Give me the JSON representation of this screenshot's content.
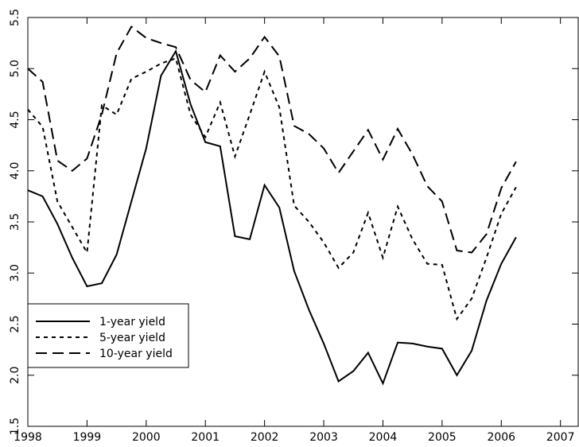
{
  "chart_data": {
    "type": "line",
    "x": [
      1998,
      1998.25,
      1998.5,
      1998.75,
      1999,
      1999.25,
      1999.5,
      1999.75,
      2000,
      2000.25,
      2000.5,
      2000.75,
      2001,
      2001.25,
      2001.5,
      2001.75,
      2002,
      2002.25,
      2002.5,
      2002.75,
      2003,
      2003.25,
      2003.5,
      2003.75,
      2004,
      2004.25,
      2004.5,
      2004.75,
      2005,
      2005.25,
      2005.5,
      2005.75,
      2006,
      2006.25
    ],
    "series": [
      {
        "name": "1-year yield",
        "color": "#000000",
        "dash": "solid",
        "values": [
          3.81,
          3.75,
          3.48,
          3.15,
          2.87,
          2.9,
          3.18,
          3.7,
          4.22,
          4.93,
          5.17,
          4.65,
          4.28,
          4.24,
          3.36,
          3.33,
          3.86,
          3.64,
          3.02,
          2.64,
          2.31,
          1.94,
          2.04,
          2.22,
          1.92,
          2.32,
          2.31,
          2.28,
          2.26,
          2.0,
          2.24,
          2.73,
          3.09,
          3.35
        ]
      },
      {
        "name": "5-year yield",
        "color": "#000000",
        "dash": "short",
        "values": [
          4.6,
          4.43,
          3.7,
          3.45,
          3.2,
          4.64,
          4.55,
          4.9,
          4.97,
          5.05,
          5.1,
          4.55,
          4.33,
          4.67,
          4.14,
          4.55,
          4.97,
          4.62,
          3.66,
          3.5,
          3.3,
          3.05,
          3.2,
          3.59,
          3.15,
          3.65,
          3.33,
          3.09,
          3.08,
          2.55,
          2.75,
          3.15,
          3.58,
          3.84
        ]
      },
      {
        "name": "10-year yield",
        "color": "#000000",
        "dash": "long",
        "values": [
          5.0,
          4.87,
          4.1,
          4.0,
          4.12,
          4.55,
          5.15,
          5.41,
          5.3,
          5.25,
          5.21,
          4.89,
          4.77,
          5.13,
          4.97,
          5.1,
          5.31,
          5.12,
          4.44,
          4.36,
          4.22,
          3.98,
          4.19,
          4.4,
          4.11,
          4.41,
          4.16,
          3.85,
          3.7,
          3.22,
          3.2,
          3.38,
          3.83,
          4.09
        ]
      }
    ],
    "xlim": [
      1998,
      2007.3
    ],
    "xticks": [
      1998,
      1999,
      2000,
      2001,
      2002,
      2003,
      2004,
      2005,
      2006,
      2007
    ],
    "ylim": [
      1.5,
      5.5
    ],
    "yticks": [
      {
        "value": 1.5,
        "label": "1.5"
      },
      {
        "value": 2.0,
        "label": "2.0"
      },
      {
        "value": 2.5,
        "label": "2.5"
      },
      {
        "value": 3.0,
        "label": "3.0"
      },
      {
        "value": 3.5,
        "label": "3.5"
      },
      {
        "value": 4.0,
        "label": "4.0"
      },
      {
        "value": 4.5,
        "label": "4.5"
      },
      {
        "value": 5.0,
        "label": "5.0"
      },
      {
        "value": 5.5,
        "label": "5.5"
      }
    ],
    "grid": false,
    "legend": "lower left"
  }
}
